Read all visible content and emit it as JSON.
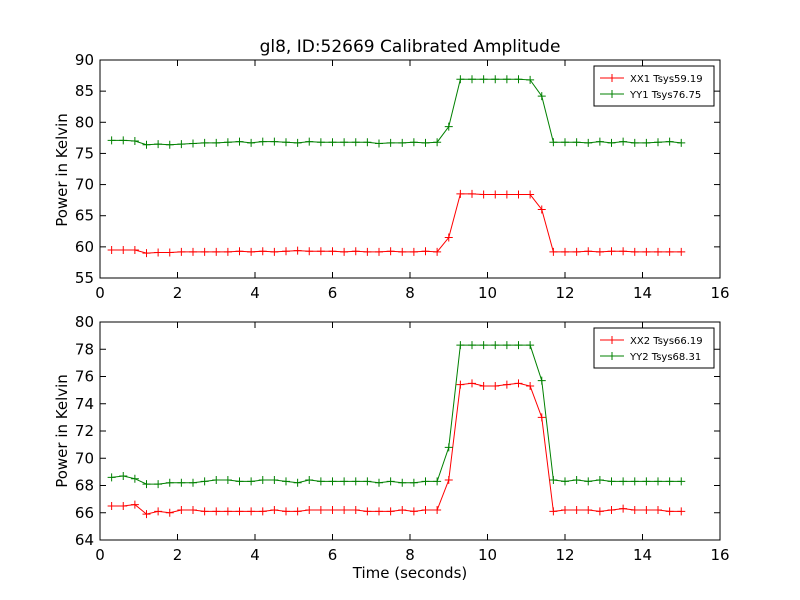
{
  "chart_data": [
    {
      "type": "line",
      "title": "gl8, ID:52669 Calibrated Amplitude",
      "xlabel": "",
      "ylabel": "Power in Kelvin",
      "xlim": [
        0,
        16
      ],
      "ylim": [
        55,
        90
      ],
      "xticks": [
        0,
        2,
        4,
        6,
        8,
        10,
        12,
        14,
        16
      ],
      "yticks": [
        55,
        60,
        65,
        70,
        75,
        80,
        85,
        90
      ],
      "legend_position": "top-right",
      "x": [
        0.3,
        0.6,
        0.9,
        1.2,
        1.5,
        1.8,
        2.1,
        2.4,
        2.7,
        3.0,
        3.3,
        3.6,
        3.9,
        4.2,
        4.5,
        4.8,
        5.1,
        5.4,
        5.7,
        6.0,
        6.3,
        6.6,
        6.9,
        7.2,
        7.5,
        7.8,
        8.1,
        8.4,
        8.7,
        9.0,
        9.3,
        9.6,
        9.9,
        10.2,
        10.5,
        10.8,
        11.1,
        11.4,
        11.7,
        12.0,
        12.3,
        12.6,
        12.9,
        13.2,
        13.5,
        13.8,
        14.1,
        14.4,
        14.7,
        15.0
      ],
      "series": [
        {
          "name": "XX1 Tsys59.19",
          "color": "#ff0000",
          "values": [
            59.5,
            59.5,
            59.5,
            59.0,
            59.1,
            59.1,
            59.2,
            59.2,
            59.2,
            59.2,
            59.2,
            59.3,
            59.2,
            59.3,
            59.2,
            59.3,
            59.4,
            59.3,
            59.3,
            59.3,
            59.2,
            59.3,
            59.2,
            59.2,
            59.3,
            59.2,
            59.2,
            59.3,
            59.2,
            61.5,
            68.5,
            68.5,
            68.4,
            68.4,
            68.4,
            68.4,
            68.4,
            66.0,
            59.2,
            59.2,
            59.2,
            59.3,
            59.2,
            59.3,
            59.3,
            59.2,
            59.2,
            59.2,
            59.2,
            59.2
          ]
        },
        {
          "name": "YY1 Tsys76.75",
          "color": "#008000",
          "values": [
            77.1,
            77.1,
            77.0,
            76.4,
            76.5,
            76.4,
            76.5,
            76.6,
            76.7,
            76.7,
            76.8,
            76.9,
            76.7,
            76.9,
            76.9,
            76.8,
            76.7,
            76.9,
            76.8,
            76.8,
            76.8,
            76.8,
            76.8,
            76.6,
            76.7,
            76.7,
            76.8,
            76.7,
            76.8,
            79.3,
            86.9,
            86.9,
            86.9,
            86.9,
            86.9,
            86.9,
            86.8,
            84.2,
            76.8,
            76.8,
            76.8,
            76.7,
            76.9,
            76.7,
            76.9,
            76.7,
            76.7,
            76.8,
            76.9,
            76.7
          ]
        }
      ]
    },
    {
      "type": "line",
      "title": "",
      "xlabel": "Time (seconds)",
      "ylabel": "Power in Kelvin",
      "xlim": [
        0,
        16
      ],
      "ylim": [
        64,
        80
      ],
      "xticks": [
        0,
        2,
        4,
        6,
        8,
        10,
        12,
        14,
        16
      ],
      "yticks": [
        64,
        66,
        68,
        70,
        72,
        74,
        76,
        78,
        80
      ],
      "legend_position": "top-right",
      "x": [
        0.3,
        0.6,
        0.9,
        1.2,
        1.5,
        1.8,
        2.1,
        2.4,
        2.7,
        3.0,
        3.3,
        3.6,
        3.9,
        4.2,
        4.5,
        4.8,
        5.1,
        5.4,
        5.7,
        6.0,
        6.3,
        6.6,
        6.9,
        7.2,
        7.5,
        7.8,
        8.1,
        8.4,
        8.7,
        9.0,
        9.3,
        9.6,
        9.9,
        10.2,
        10.5,
        10.8,
        11.1,
        11.4,
        11.7,
        12.0,
        12.3,
        12.6,
        12.9,
        13.2,
        13.5,
        13.8,
        14.1,
        14.4,
        14.7,
        15.0
      ],
      "series": [
        {
          "name": "XX2 Tsys66.19",
          "color": "#ff0000",
          "values": [
            66.5,
            66.5,
            66.6,
            65.9,
            66.1,
            66.0,
            66.2,
            66.2,
            66.1,
            66.1,
            66.1,
            66.1,
            66.1,
            66.1,
            66.2,
            66.1,
            66.1,
            66.2,
            66.2,
            66.2,
            66.2,
            66.2,
            66.1,
            66.1,
            66.1,
            66.2,
            66.1,
            66.2,
            66.2,
            68.4,
            75.4,
            75.5,
            75.3,
            75.3,
            75.4,
            75.5,
            75.3,
            73.0,
            66.1,
            66.2,
            66.2,
            66.2,
            66.1,
            66.2,
            66.3,
            66.2,
            66.2,
            66.2,
            66.1,
            66.1
          ]
        },
        {
          "name": "YY2 Tsys68.31",
          "color": "#008000",
          "values": [
            68.6,
            68.7,
            68.5,
            68.1,
            68.1,
            68.2,
            68.2,
            68.2,
            68.3,
            68.4,
            68.4,
            68.3,
            68.3,
            68.4,
            68.4,
            68.3,
            68.2,
            68.4,
            68.3,
            68.3,
            68.3,
            68.3,
            68.3,
            68.2,
            68.3,
            68.2,
            68.2,
            68.3,
            68.3,
            70.8,
            78.3,
            78.3,
            78.3,
            78.3,
            78.3,
            78.3,
            78.3,
            75.7,
            68.4,
            68.3,
            68.4,
            68.3,
            68.4,
            68.3,
            68.3,
            68.3,
            68.3,
            68.3,
            68.3,
            68.3
          ]
        }
      ]
    }
  ]
}
